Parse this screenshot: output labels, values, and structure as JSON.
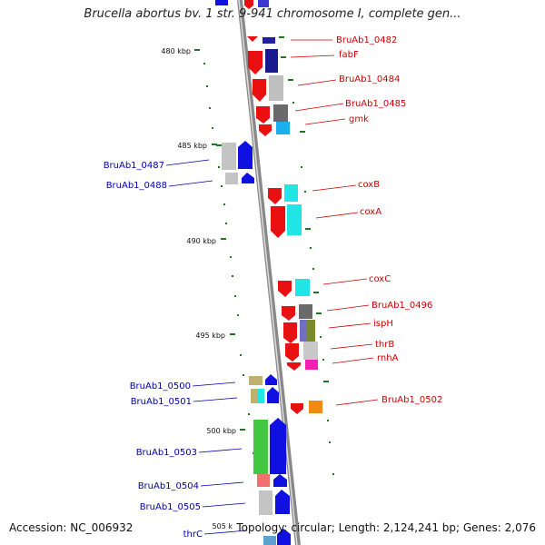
{
  "title": "Brucella abortus bv. 1 str. 9-941 chromosome I, complete gen...",
  "footer": {
    "accession": "Accession: NC_006932",
    "summary": "Topology: circular; Length: 2,124,241 bp; Genes: 2,076"
  },
  "ticks": [
    "480 kbp",
    "485 kbp",
    "490 kbp",
    "495 kbp",
    "500 kbp",
    "505 k"
  ],
  "colors": {
    "backbone": "#8a8a8a",
    "forward_label": "#cc0000",
    "reverse_label": "#0000aa",
    "tick": "#1a7a1a"
  },
  "labels": {
    "forward": [
      "BruAb1_0482",
      "fabF",
      "BruAb1_0484",
      "BruAb1_0485",
      "gmk",
      "coxB",
      "coxA",
      "coxC",
      "BruAb1_0496",
      "ispH",
      "thrB",
      "rnhA",
      "BruAb1_0502"
    ],
    "reverse": [
      "BruAb1_0487",
      "BruAb1_0488",
      "BruAb1_0500",
      "BruAb1_0501",
      "BruAb1_0503",
      "BruAb1_0504",
      "BruAb1_0505",
      "thrC"
    ]
  }
}
